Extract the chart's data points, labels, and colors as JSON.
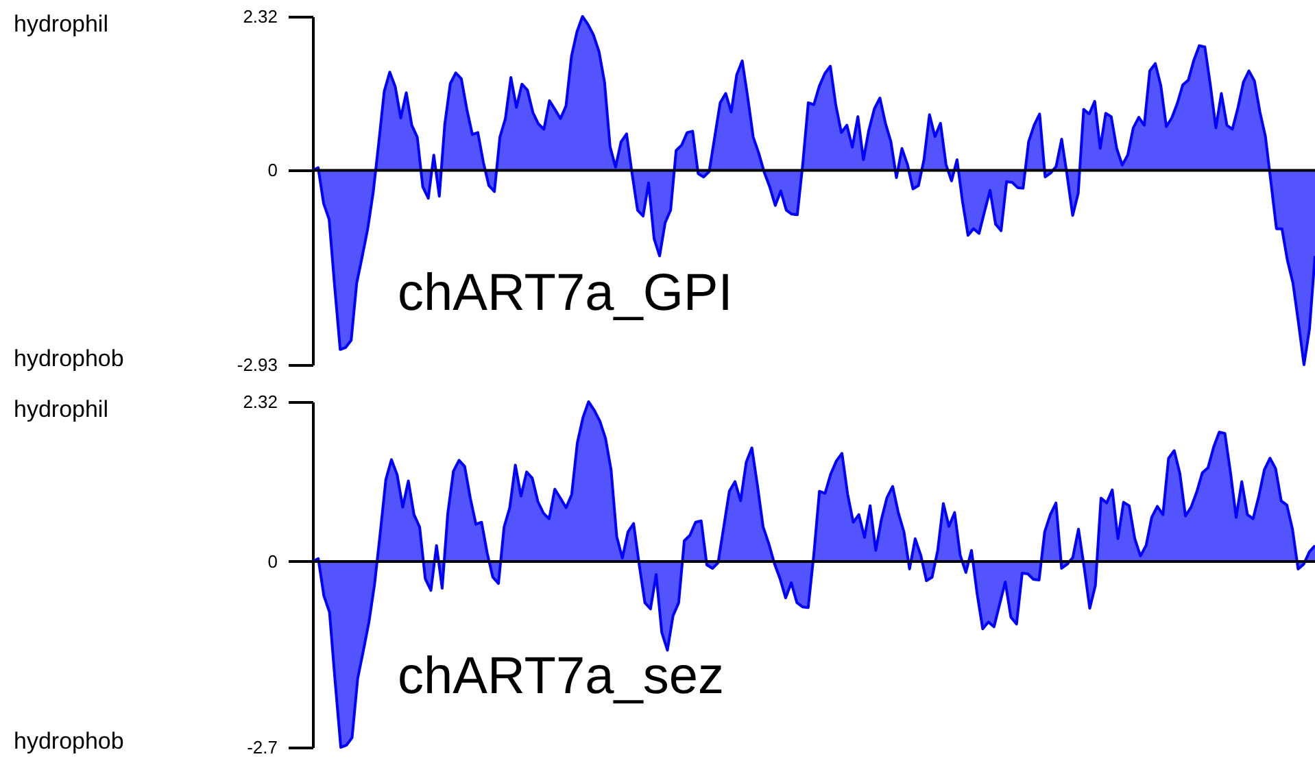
{
  "chart_data": [
    {
      "type": "area",
      "title": "chART7a_GPI",
      "annotations": [
        "hydrophil",
        "hydrophob"
      ],
      "color": "#0000ff",
      "ylim": [
        -2.93,
        2.32
      ],
      "yticks": [
        2.32,
        0,
        -2.93
      ],
      "tick_labels": "y",
      "ref_lines": [
        {
          "axis": "y",
          "value": 0,
          "color": "#000000"
        }
      ],
      "categories": [
        null,
        null,
        null,
        null,
        null,
        null,
        null,
        null,
        null,
        null,
        null,
        null,
        null,
        null,
        null,
        null,
        null,
        null,
        null,
        null,
        null,
        null,
        null,
        null,
        null,
        null,
        null,
        null,
        null,
        null,
        null,
        null,
        null,
        null,
        null,
        null,
        null,
        null,
        null,
        null,
        null,
        null,
        null,
        null,
        null,
        null,
        null,
        null,
        null,
        null,
        null,
        null,
        null,
        null,
        null,
        null,
        null,
        null,
        null,
        null,
        null,
        null,
        null,
        null,
        null,
        null,
        null,
        null,
        null,
        null,
        null,
        null,
        null,
        null,
        null,
        null,
        null,
        null,
        null,
        null,
        null,
        null,
        null,
        null,
        null,
        null,
        null,
        null,
        null,
        null,
        null,
        null,
        null,
        null,
        null,
        null,
        null,
        null,
        null,
        null,
        null,
        null,
        null,
        null,
        null,
        null,
        null,
        null,
        null,
        null,
        null,
        null,
        null,
        null,
        null,
        null,
        null,
        null,
        null,
        null,
        null,
        null,
        null,
        null,
        null,
        null,
        null,
        null,
        null,
        null,
        null,
        null,
        null,
        null,
        null,
        null,
        null,
        null,
        null,
        null,
        null,
        null,
        null,
        null,
        null,
        null,
        null,
        null,
        null,
        null,
        null,
        null,
        null,
        null,
        null,
        null,
        null,
        null,
        null,
        null,
        null,
        null,
        null,
        null,
        null,
        null,
        null,
        null,
        null,
        null,
        null,
        null,
        null,
        null,
        null,
        null,
        null,
        null,
        null,
        null,
        null,
        null,
        null
      ],
      "values": [
        0.0,
        0.04,
        -0.5,
        -0.74,
        -1.75,
        -2.7,
        -2.67,
        -2.56,
        -1.7,
        -1.3,
        -0.88,
        -0.33,
        0.41,
        1.19,
        1.48,
        1.26,
        0.79,
        1.17,
        0.68,
        0.5,
        -0.25,
        -0.42,
        0.23,
        -0.39,
        0.7,
        1.31,
        1.47,
        1.38,
        0.92,
        0.54,
        0.57,
        0.12,
        -0.23,
        -0.32,
        0.5,
        0.78,
        1.4,
        0.95,
        1.3,
        1.21,
        0.87,
        0.7,
        0.62,
        1.05,
        0.92,
        0.78,
        0.97,
        1.72,
        2.09,
        2.32,
        2.2,
        2.04,
        1.79,
        1.33,
        0.36,
        0.05,
        0.43,
        0.55,
        -0.05,
        -0.6,
        -0.69,
        -0.19,
        -1.03,
        -1.29,
        -0.79,
        -0.6,
        0.3,
        0.38,
        0.57,
        0.59,
        -0.05,
        -0.1,
        -0.02,
        0.5,
        1.02,
        1.16,
        0.88,
        1.44,
        1.65,
        1.1,
        0.5,
        0.26,
        -0.03,
        -0.25,
        -0.53,
        -0.31,
        -0.6,
        -0.66,
        -0.67,
        0.1,
        1.02,
        0.99,
        1.27,
        1.46,
        1.57,
        0.98,
        0.57,
        0.68,
        0.35,
        0.81,
        0.16,
        0.61,
        0.93,
        1.09,
        0.71,
        0.43,
        -0.11,
        0.33,
        0.09,
        -0.28,
        -0.23,
        0.16,
        0.84,
        0.51,
        0.71,
        0.09,
        -0.16,
        0.16,
        -0.47,
        -0.98,
        -0.88,
        -0.95,
        -0.62,
        -0.3,
        -0.81,
        -0.91,
        -0.17,
        -0.18,
        -0.26,
        -0.27,
        0.43,
        0.68,
        0.85,
        -0.1,
        -0.04,
        0.06,
        0.47,
        -0.08,
        -0.68,
        -0.35,
        0.92,
        0.85,
        1.04,
        0.33,
        0.86,
        0.81,
        0.33,
        0.08,
        0.23,
        0.64,
        0.8,
        0.68,
        1.5,
        1.61,
        1.28,
        0.66,
        0.79,
        1.01,
        1.29,
        1.36,
        1.66,
        1.88,
        1.86,
        1.29,
        0.64,
        1.16,
        0.68,
        0.62,
        0.94,
        1.33,
        1.5,
        1.35,
        0.88,
        0.51,
        -0.18,
        -0.88,
        -0.88,
        -1.36,
        -1.7,
        -2.3,
        -2.93,
        -2.39,
        -1.29
      ]
    },
    {
      "type": "area",
      "title": "chART7a_sez",
      "annotations": [
        "hydrophil",
        "hydrophob"
      ],
      "color": "#0000ff",
      "ylim": [
        -2.7,
        2.32
      ],
      "yticks": [
        2.32,
        0,
        -2.7
      ],
      "tick_labels": "y",
      "ref_lines": [
        {
          "axis": "y",
          "value": 0,
          "color": "#000000"
        }
      ],
      "categories": [
        null,
        null,
        null,
        null,
        null,
        null,
        null,
        null,
        null,
        null,
        null,
        null,
        null,
        null,
        null,
        null,
        null,
        null,
        null,
        null,
        null,
        null,
        null,
        null,
        null,
        null,
        null,
        null,
        null,
        null,
        null,
        null,
        null,
        null,
        null,
        null,
        null,
        null,
        null,
        null,
        null,
        null,
        null,
        null,
        null,
        null,
        null,
        null,
        null,
        null,
        null,
        null,
        null,
        null,
        null,
        null,
        null,
        null,
        null,
        null,
        null,
        null,
        null,
        null,
        null,
        null,
        null,
        null,
        null,
        null,
        null,
        null,
        null,
        null,
        null,
        null,
        null,
        null,
        null,
        null,
        null,
        null,
        null,
        null,
        null,
        null,
        null,
        null,
        null,
        null,
        null,
        null,
        null,
        null,
        null,
        null,
        null,
        null,
        null,
        null,
        null,
        null,
        null,
        null,
        null,
        null,
        null,
        null,
        null,
        null,
        null,
        null,
        null,
        null,
        null,
        null,
        null,
        null,
        null,
        null,
        null,
        null,
        null,
        null,
        null,
        null,
        null,
        null,
        null,
        null,
        null,
        null,
        null,
        null,
        null,
        null,
        null,
        null,
        null,
        null,
        null,
        null,
        null,
        null,
        null,
        null,
        null,
        null,
        null,
        null,
        null,
        null,
        null,
        null,
        null,
        null,
        null,
        null,
        null,
        null,
        null,
        null,
        null,
        null,
        null,
        null,
        null,
        null,
        null,
        null,
        null,
        null,
        null,
        null,
        null,
        null,
        null,
        null,
        null
      ],
      "values": [
        0.0,
        0.04,
        -0.5,
        -0.74,
        -1.75,
        -2.7,
        -2.67,
        -2.56,
        -1.7,
        -1.3,
        -0.88,
        -0.33,
        0.41,
        1.19,
        1.48,
        1.26,
        0.79,
        1.17,
        0.68,
        0.5,
        -0.25,
        -0.42,
        0.23,
        -0.39,
        0.7,
        1.31,
        1.47,
        1.38,
        0.92,
        0.54,
        0.57,
        0.12,
        -0.23,
        -0.32,
        0.5,
        0.78,
        1.4,
        0.95,
        1.3,
        1.21,
        0.87,
        0.7,
        0.62,
        1.05,
        0.92,
        0.78,
        0.97,
        1.72,
        2.09,
        2.32,
        2.2,
        2.04,
        1.79,
        1.33,
        0.36,
        0.05,
        0.43,
        0.55,
        -0.05,
        -0.6,
        -0.69,
        -0.19,
        -1.03,
        -1.29,
        -0.79,
        -0.6,
        0.3,
        0.38,
        0.57,
        0.59,
        -0.05,
        -0.1,
        -0.02,
        0.5,
        1.02,
        1.16,
        0.88,
        1.44,
        1.65,
        1.1,
        0.5,
        0.26,
        -0.03,
        -0.25,
        -0.53,
        -0.31,
        -0.6,
        -0.66,
        -0.67,
        0.1,
        1.02,
        0.99,
        1.27,
        1.46,
        1.57,
        0.98,
        0.57,
        0.68,
        0.35,
        0.81,
        0.16,
        0.61,
        0.93,
        1.09,
        0.71,
        0.43,
        -0.11,
        0.33,
        0.09,
        -0.28,
        -0.23,
        0.16,
        0.84,
        0.51,
        0.71,
        0.09,
        -0.16,
        0.16,
        -0.47,
        -0.98,
        -0.88,
        -0.95,
        -0.62,
        -0.3,
        -0.81,
        -0.91,
        -0.17,
        -0.18,
        -0.26,
        -0.27,
        0.43,
        0.68,
        0.85,
        -0.1,
        -0.04,
        0.06,
        0.47,
        -0.08,
        -0.68,
        -0.35,
        0.92,
        0.85,
        1.04,
        0.33,
        0.86,
        0.81,
        0.33,
        0.08,
        0.23,
        0.64,
        0.8,
        0.68,
        1.5,
        1.61,
        1.28,
        0.66,
        0.79,
        1.01,
        1.29,
        1.36,
        1.66,
        1.88,
        1.86,
        1.29,
        0.64,
        1.16,
        0.68,
        0.62,
        0.94,
        1.33,
        1.5,
        1.35,
        0.88,
        0.82,
        0.47,
        -0.11,
        -0.04,
        0.14,
        0.23
      ]
    }
  ]
}
